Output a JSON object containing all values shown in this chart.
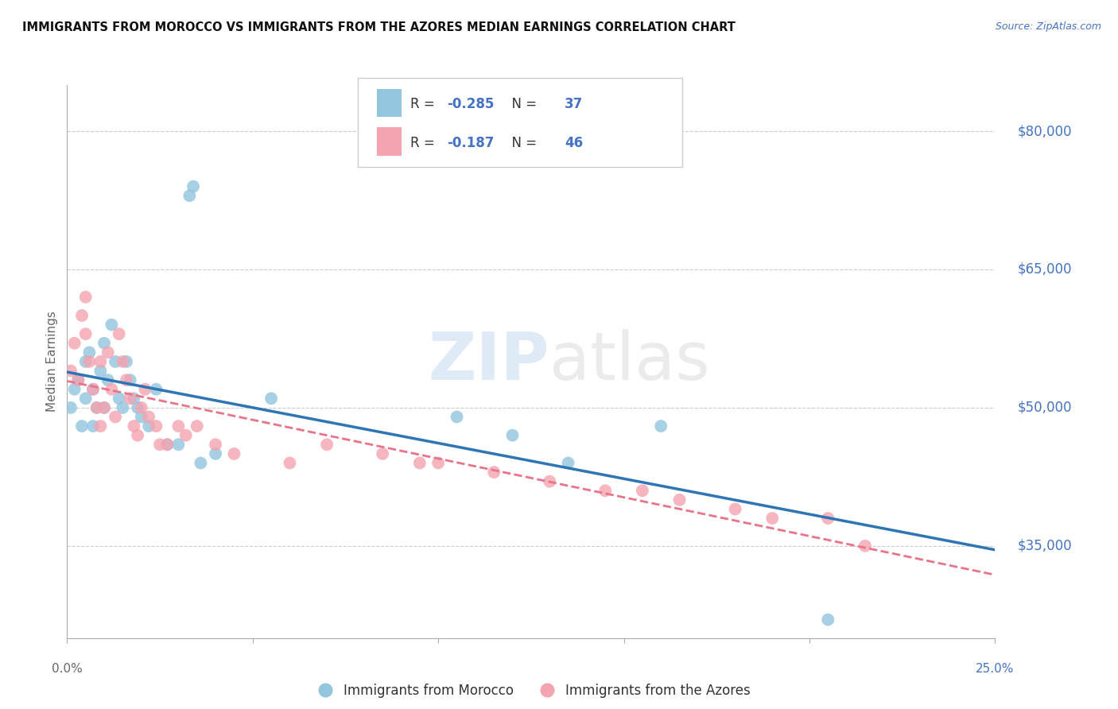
{
  "title": "IMMIGRANTS FROM MOROCCO VS IMMIGRANTS FROM THE AZORES MEDIAN EARNINGS CORRELATION CHART",
  "source": "Source: ZipAtlas.com",
  "ylabel": "Median Earnings",
  "yticks": [
    35000,
    50000,
    65000,
    80000
  ],
  "ytick_labels": [
    "$35,000",
    "$50,000",
    "$65,000",
    "$80,000"
  ],
  "xmin": 0.0,
  "xmax": 0.25,
  "ymin": 25000,
  "ymax": 85000,
  "morocco_color": "#92C5DE",
  "azores_color": "#F4A4B0",
  "morocco_line_color": "#2E75B6",
  "azores_line_color": "#E8748A",
  "morocco_R": "-0.285",
  "morocco_N": "37",
  "azores_R": "-0.187",
  "azores_N": "46",
  "legend_label_blue": "Immigrants from Morocco",
  "legend_label_pink": "Immigrants from the Azores",
  "watermark_zip": "ZIP",
  "watermark_atlas": "atlas",
  "morocco_points_x": [
    0.001,
    0.002,
    0.003,
    0.004,
    0.005,
    0.005,
    0.006,
    0.007,
    0.007,
    0.008,
    0.009,
    0.01,
    0.01,
    0.011,
    0.012,
    0.013,
    0.014,
    0.015,
    0.016,
    0.017,
    0.018,
    0.019,
    0.02,
    0.022,
    0.024,
    0.027,
    0.03,
    0.033,
    0.034,
    0.036,
    0.04,
    0.055,
    0.105,
    0.12,
    0.135,
    0.16,
    0.205
  ],
  "morocco_points_y": [
    50000,
    52000,
    53000,
    48000,
    55000,
    51000,
    56000,
    52000,
    48000,
    50000,
    54000,
    57000,
    50000,
    53000,
    59000,
    55000,
    51000,
    50000,
    55000,
    53000,
    51000,
    50000,
    49000,
    48000,
    52000,
    46000,
    46000,
    73000,
    74000,
    44000,
    45000,
    51000,
    49000,
    47000,
    44000,
    48000,
    27000
  ],
  "azores_points_x": [
    0.001,
    0.002,
    0.003,
    0.004,
    0.005,
    0.005,
    0.006,
    0.007,
    0.008,
    0.009,
    0.009,
    0.01,
    0.011,
    0.012,
    0.013,
    0.014,
    0.015,
    0.016,
    0.017,
    0.018,
    0.019,
    0.02,
    0.021,
    0.022,
    0.024,
    0.025,
    0.027,
    0.03,
    0.032,
    0.035,
    0.04,
    0.045,
    0.06,
    0.07,
    0.085,
    0.095,
    0.1,
    0.115,
    0.13,
    0.145,
    0.155,
    0.165,
    0.18,
    0.19,
    0.205,
    0.215
  ],
  "azores_points_y": [
    54000,
    57000,
    53000,
    60000,
    58000,
    62000,
    55000,
    52000,
    50000,
    55000,
    48000,
    50000,
    56000,
    52000,
    49000,
    58000,
    55000,
    53000,
    51000,
    48000,
    47000,
    50000,
    52000,
    49000,
    48000,
    46000,
    46000,
    48000,
    47000,
    48000,
    46000,
    45000,
    44000,
    46000,
    45000,
    44000,
    44000,
    43000,
    42000,
    41000,
    41000,
    40000,
    39000,
    38000,
    38000,
    35000
  ]
}
